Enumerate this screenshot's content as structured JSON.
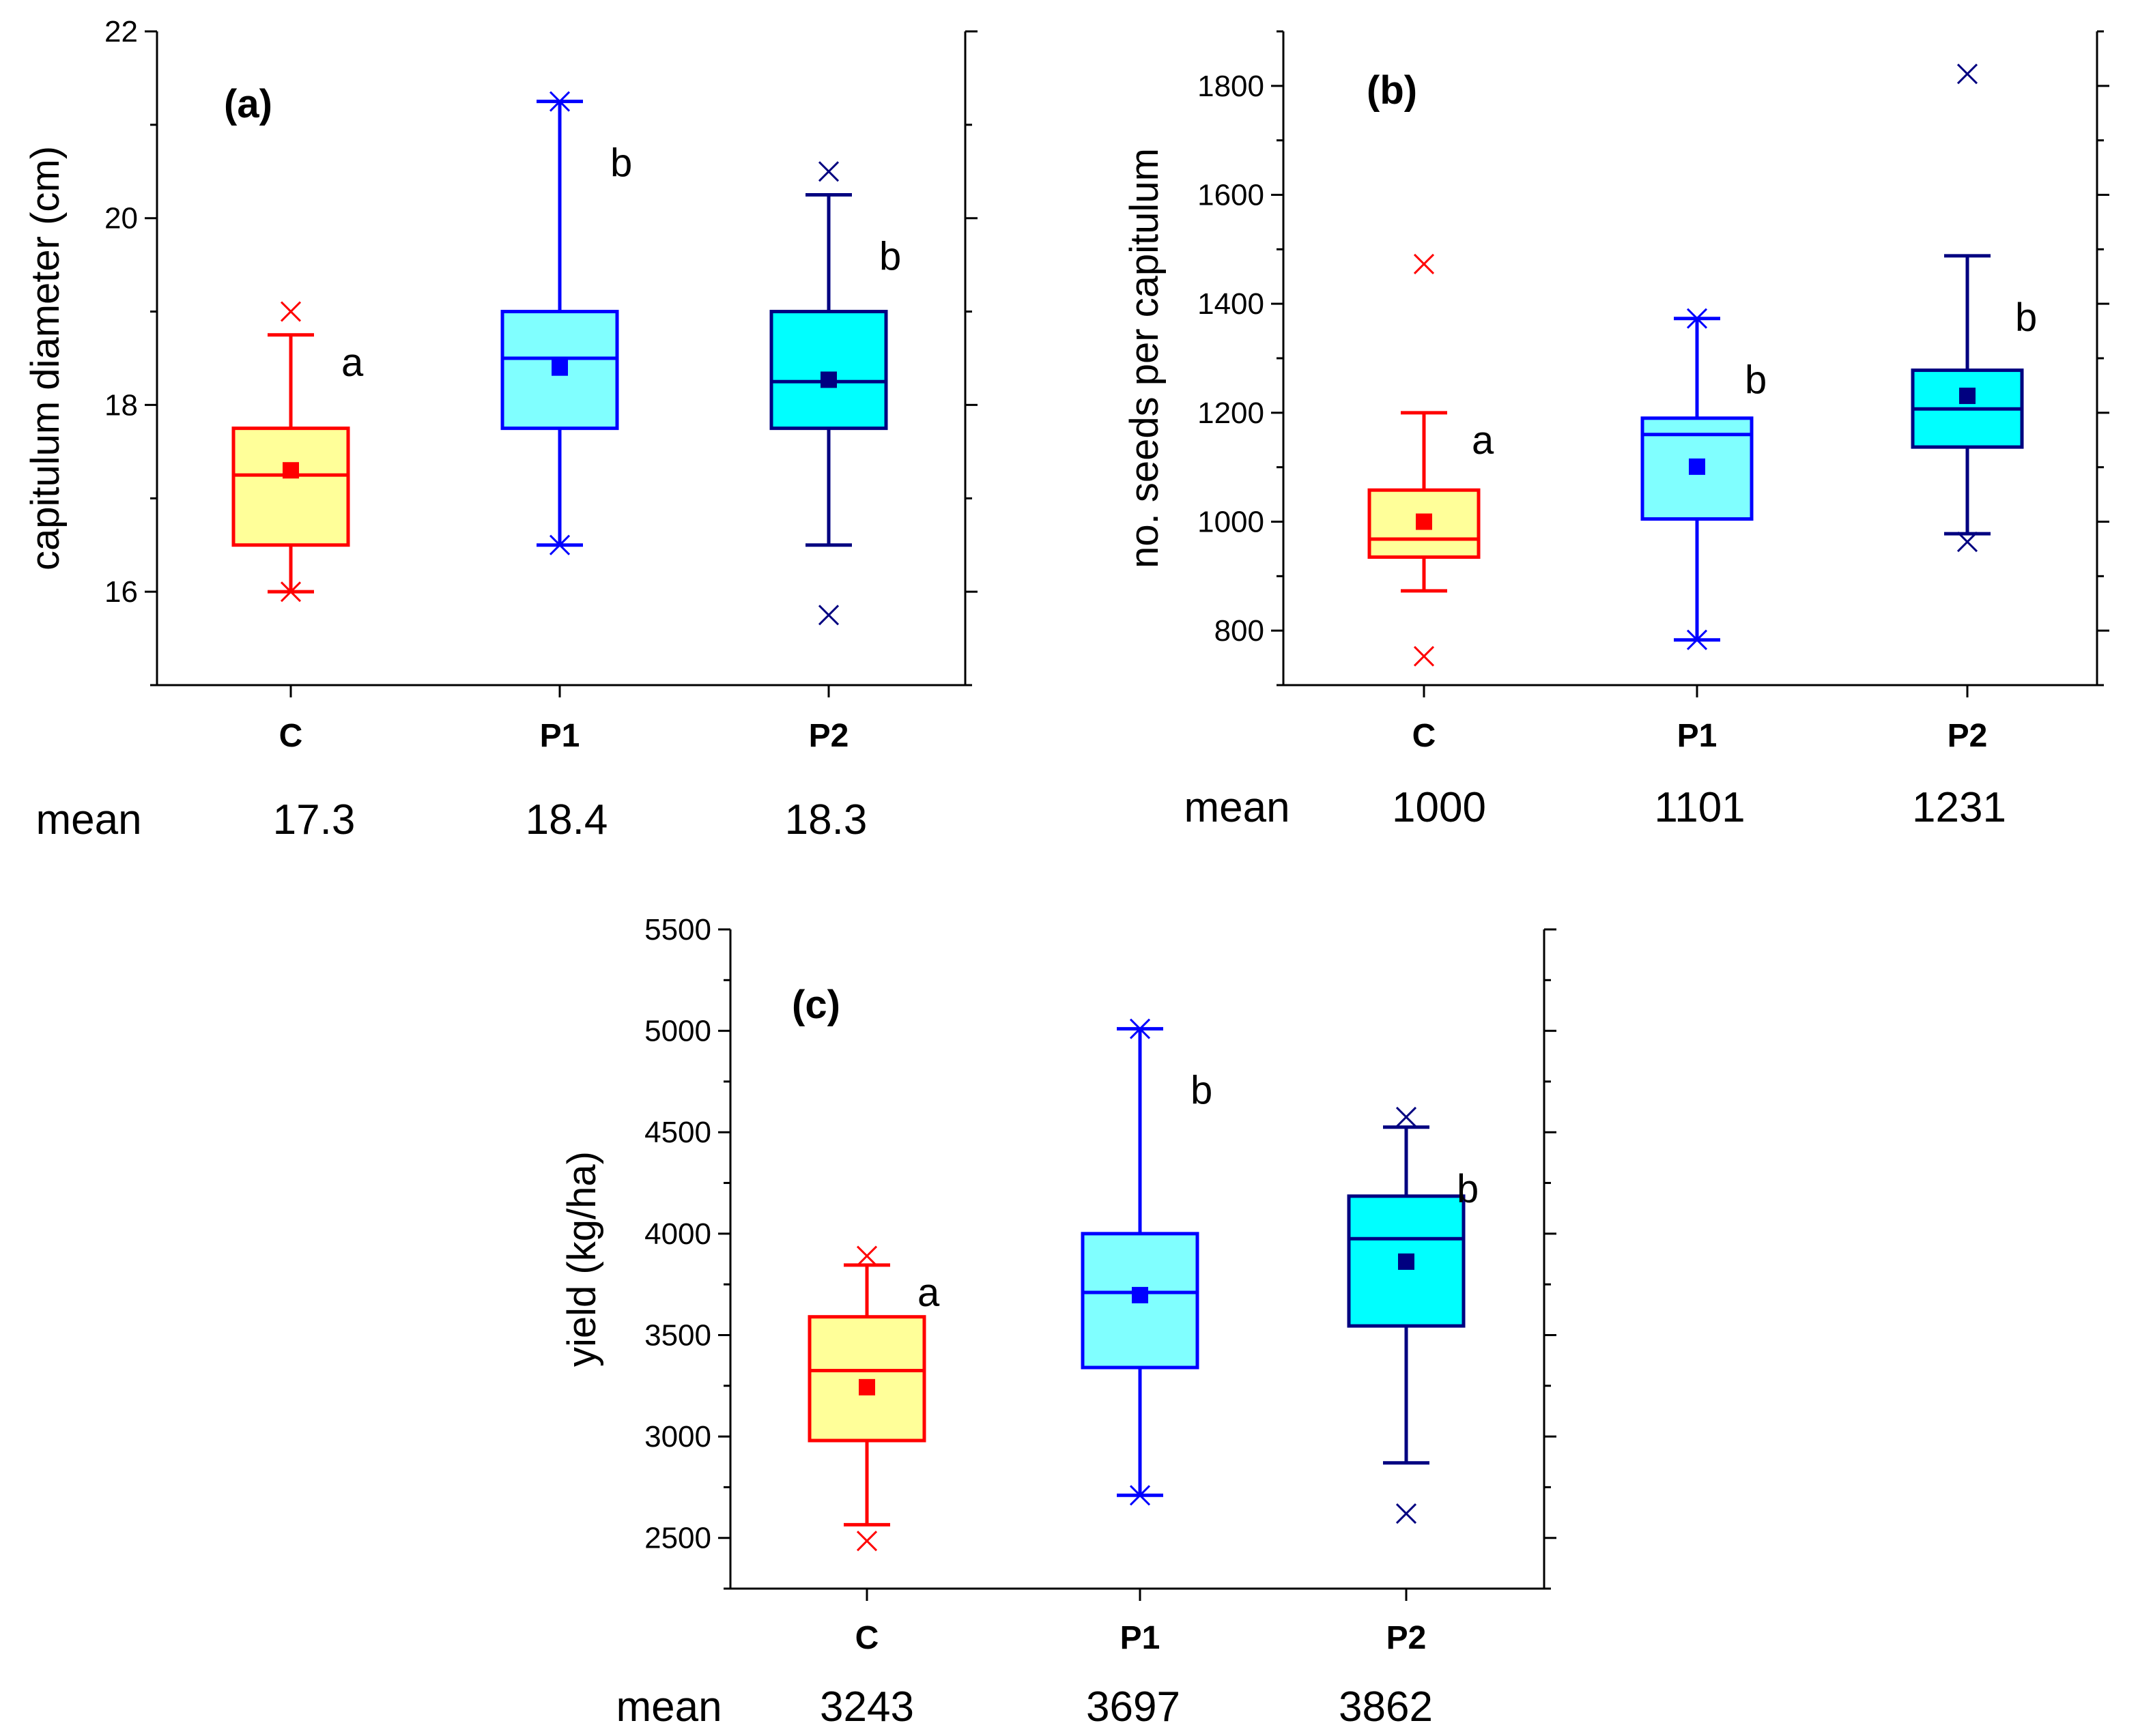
{
  "chart_data": [
    {
      "type": "box",
      "panel": "(a)",
      "ylabel": "capitulum diameter (cm)",
      "ylim": [
        15,
        22
      ],
      "yticks": [
        16,
        18,
        20,
        22
      ],
      "categories": [
        "C",
        "P1",
        "P2"
      ],
      "mean_label": "mean",
      "mean_values": [
        "17.3",
        "18.4",
        "18.3"
      ],
      "boxes": [
        {
          "q1": 16.5,
          "median": 17.25,
          "q3": 17.75,
          "mean": 17.3,
          "whisker_low": 16.0,
          "whisker_high": 18.75,
          "outliers": [
            19.0
          ],
          "low_marker": 16.0,
          "high_marker": null,
          "letter": "a",
          "fill": "#ffff99",
          "stroke": "#ff0000"
        },
        {
          "q1": 17.75,
          "median": 18.5,
          "q3": 19.0,
          "mean": 18.4,
          "whisker_low": 16.5,
          "whisker_high": 21.25,
          "outliers": [],
          "low_marker": 16.5,
          "high_marker": 21.25,
          "letter": "b",
          "fill": "#80ffff",
          "stroke": "#0000ff"
        },
        {
          "q1": 17.75,
          "median": 18.25,
          "q3": 19.0,
          "mean": 18.27,
          "whisker_low": 16.5,
          "whisker_high": 20.25,
          "outliers": [
            20.5,
            15.75
          ],
          "low_marker": null,
          "high_marker": null,
          "letter": "b",
          "fill": "#00ffff",
          "stroke": "#000080"
        }
      ]
    },
    {
      "type": "box",
      "panel": "(b)",
      "ylabel": "no. seeds per capitulum",
      "ylim": [
        700,
        1900
      ],
      "yticks": [
        800,
        1000,
        1200,
        1400,
        1600,
        1800
      ],
      "categories": [
        "C",
        "P1",
        "P2"
      ],
      "mean_label": "mean",
      "mean_values": [
        "1000",
        "1101",
        "1231"
      ],
      "boxes": [
        {
          "q1": 935,
          "median": 968,
          "q3": 1058,
          "mean": 1000,
          "whisker_low": 873,
          "whisker_high": 1200,
          "outliers": [
            1473,
            753
          ],
          "low_marker": null,
          "high_marker": null,
          "letter": "a",
          "fill": "#ffff99",
          "stroke": "#ff0000"
        },
        {
          "q1": 1005,
          "median": 1160,
          "q3": 1190,
          "mean": 1101,
          "whisker_low": 783,
          "whisker_high": 1373,
          "outliers": [],
          "low_marker": 783,
          "high_marker": 1373,
          "letter": "b",
          "fill": "#80ffff",
          "stroke": "#0000ff"
        },
        {
          "q1": 1137,
          "median": 1207,
          "q3": 1278,
          "mean": 1231,
          "whisker_low": 978,
          "whisker_high": 1488,
          "outliers": [
            1822,
            963
          ],
          "low_marker": null,
          "high_marker": null,
          "letter": "b",
          "fill": "#00ffff",
          "stroke": "#000080"
        }
      ]
    },
    {
      "type": "box",
      "panel": "(c)",
      "ylabel": "yield (kg/ha)",
      "ylim": [
        2250,
        5500
      ],
      "yticks": [
        2500,
        3000,
        3500,
        4000,
        4500,
        5000,
        5500
      ],
      "categories": [
        "C",
        "P1",
        "P2"
      ],
      "mean_label": "mean",
      "mean_values": [
        "3243",
        "3697",
        "3862"
      ],
      "boxes": [
        {
          "q1": 2980,
          "median": 3325,
          "q3": 3590,
          "mean": 3243,
          "whisker_low": 2565,
          "whisker_high": 3845,
          "outliers": [
            3890,
            2485
          ],
          "low_marker": null,
          "high_marker": null,
          "letter": "a",
          "fill": "#ffff99",
          "stroke": "#ff0000"
        },
        {
          "q1": 3340,
          "median": 3710,
          "q3": 4000,
          "mean": 3697,
          "whisker_low": 2710,
          "whisker_high": 5010,
          "outliers": [],
          "low_marker": 2710,
          "high_marker": 5010,
          "letter": "b",
          "fill": "#80ffff",
          "stroke": "#0000ff"
        },
        {
          "q1": 3545,
          "median": 3975,
          "q3": 4185,
          "mean": 3862,
          "whisker_low": 2870,
          "whisker_high": 4525,
          "outliers": [
            4575,
            2620
          ],
          "low_marker": null,
          "high_marker": null,
          "letter": "b",
          "fill": "#00ffff",
          "stroke": "#000080"
        }
      ]
    }
  ]
}
